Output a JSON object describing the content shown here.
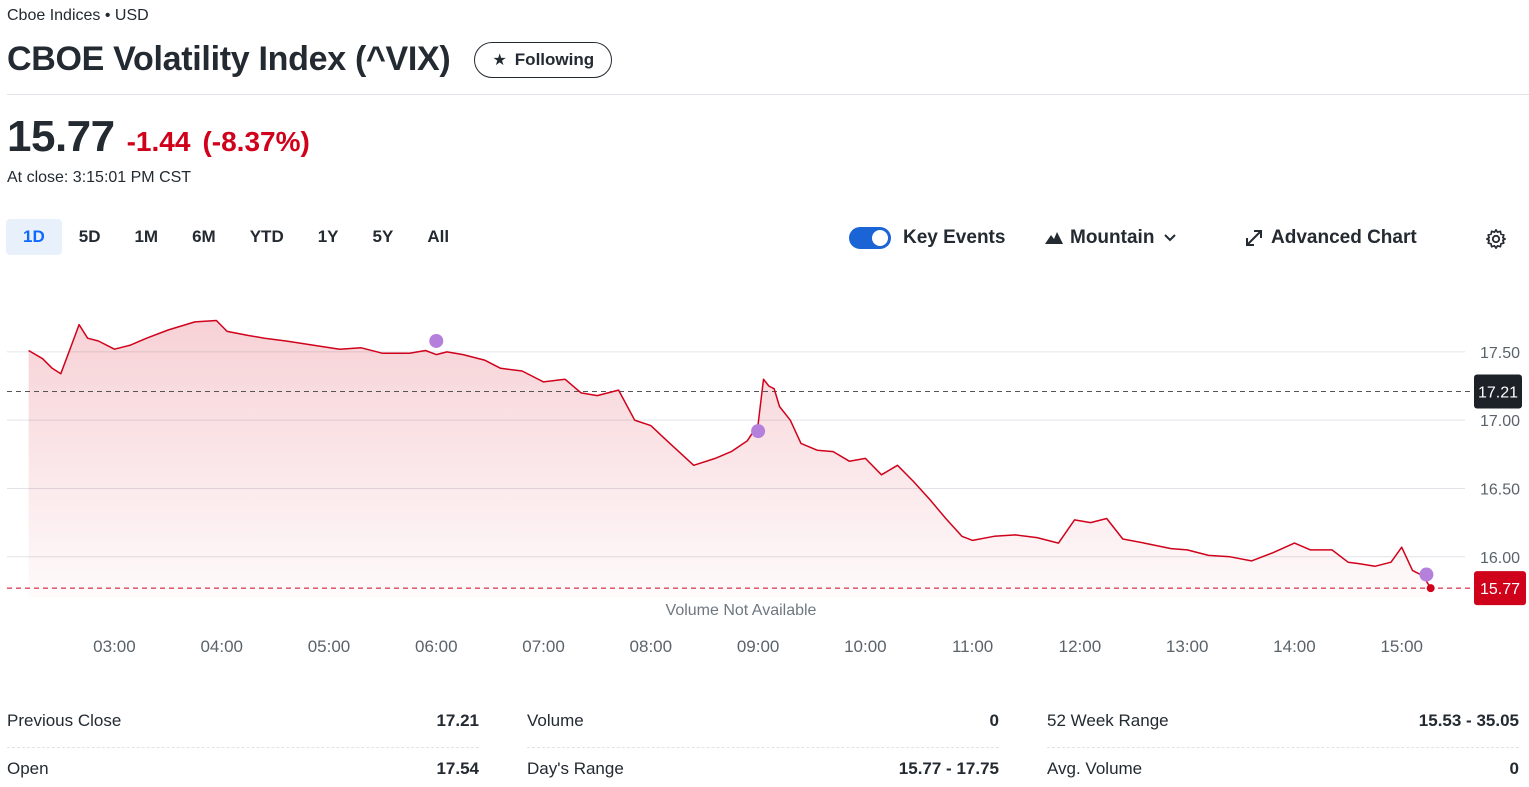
{
  "header": {
    "exchange": "Cboe Indices • USD",
    "title": "CBOE Volatility Index (^VIX)",
    "follow_label": "Following"
  },
  "quote": {
    "price": "15.77",
    "change": "-1.44",
    "change_pct": "(-8.37%)",
    "close_time": "At close: 3:15:01 PM CST"
  },
  "ranges": [
    {
      "label": "1D",
      "active": true
    },
    {
      "label": "5D",
      "active": false
    },
    {
      "label": "1M",
      "active": false
    },
    {
      "label": "6M",
      "active": false
    },
    {
      "label": "YTD",
      "active": false
    },
    {
      "label": "1Y",
      "active": false
    },
    {
      "label": "5Y",
      "active": false
    },
    {
      "label": "All",
      "active": false
    }
  ],
  "controls": {
    "key_events_label": "Key Events",
    "key_events_on": true,
    "chart_type_label": "Mountain",
    "advanced_chart_label": "Advanced Chart"
  },
  "colors": {
    "accent": "#0f69ff",
    "negative": "#d0021b",
    "event_marker": "#b57fdc",
    "toggle": "#1a64d6"
  },
  "chart_data": {
    "type": "area",
    "volume_note": "Volume Not Available",
    "x_ticks": [
      "03:00",
      "04:00",
      "05:00",
      "06:00",
      "07:00",
      "08:00",
      "09:00",
      "10:00",
      "11:00",
      "12:00",
      "13:00",
      "14:00",
      "15:00"
    ],
    "y_ticks": [
      "17.50",
      "17.00",
      "16.50",
      "16.00"
    ],
    "ylim": [
      15.72,
      17.88
    ],
    "xlim": [
      2.25,
      15.45
    ],
    "previous_close": 17.21,
    "previous_close_label": "17.21",
    "last_price": 15.77,
    "last_price_label": "15.77",
    "series": [
      {
        "x": [
          2.2,
          2.33,
          2.42,
          2.5,
          2.6,
          2.67,
          2.75,
          2.85,
          3.0,
          3.15,
          3.3,
          3.5,
          3.75,
          3.95,
          4.05,
          4.25,
          4.4,
          4.6,
          4.85,
          5.1,
          5.3,
          5.5,
          5.75,
          5.9,
          6.0,
          6.1,
          6.25,
          6.45,
          6.6,
          6.8,
          7.0,
          7.2,
          7.35,
          7.5,
          7.7,
          7.85,
          8.0,
          8.15,
          8.4,
          8.6,
          8.75,
          8.9,
          9.0,
          9.05,
          9.1,
          9.15,
          9.2,
          9.3,
          9.4,
          9.55,
          9.7,
          9.85,
          10.0,
          10.15,
          10.3,
          10.45,
          10.6,
          10.75,
          10.9,
          11.0,
          11.2,
          11.4,
          11.6,
          11.8,
          11.95,
          12.1,
          12.25,
          12.4,
          12.6,
          12.85,
          13.0,
          13.2,
          13.4,
          13.6,
          13.8,
          14.0,
          14.15,
          14.35,
          14.5,
          14.6,
          14.75,
          14.9,
          15.0,
          15.1,
          15.2,
          15.27
        ],
        "values": [
          17.51,
          17.45,
          17.38,
          17.34,
          17.55,
          17.7,
          17.6,
          17.58,
          17.52,
          17.55,
          17.6,
          17.66,
          17.72,
          17.73,
          17.65,
          17.62,
          17.6,
          17.58,
          17.55,
          17.52,
          17.53,
          17.49,
          17.49,
          17.51,
          17.48,
          17.5,
          17.48,
          17.44,
          17.38,
          17.36,
          17.28,
          17.3,
          17.2,
          17.18,
          17.22,
          17.0,
          16.96,
          16.85,
          16.67,
          16.72,
          16.77,
          16.85,
          16.97,
          17.3,
          17.25,
          17.23,
          17.1,
          17.0,
          16.83,
          16.78,
          16.77,
          16.7,
          16.72,
          16.6,
          16.67,
          16.55,
          16.42,
          16.28,
          16.15,
          16.12,
          16.15,
          16.16,
          16.14,
          16.1,
          16.27,
          16.25,
          16.28,
          16.13,
          16.1,
          16.06,
          16.05,
          16.01,
          16.0,
          15.97,
          16.03,
          16.1,
          16.05,
          16.05,
          15.96,
          15.95,
          15.93,
          15.96,
          16.07,
          15.9,
          15.86,
          15.77
        ]
      }
    ],
    "key_events_at": [
      {
        "x": 6.0,
        "y": 17.58
      },
      {
        "x": 9.0,
        "y": 16.92
      },
      {
        "x": 15.23,
        "y": 15.87
      }
    ]
  },
  "stats": {
    "columns": [
      [
        {
          "label": "Previous Close",
          "value": "17.21"
        },
        {
          "label": "Open",
          "value": "17.54"
        }
      ],
      [
        {
          "label": "Volume",
          "value": "0"
        },
        {
          "label": "Day's Range",
          "value": "15.77 - 17.75"
        }
      ],
      [
        {
          "label": "52 Week Range",
          "value": "15.53 - 35.05"
        },
        {
          "label": "Avg. Volume",
          "value": "0"
        }
      ]
    ]
  }
}
